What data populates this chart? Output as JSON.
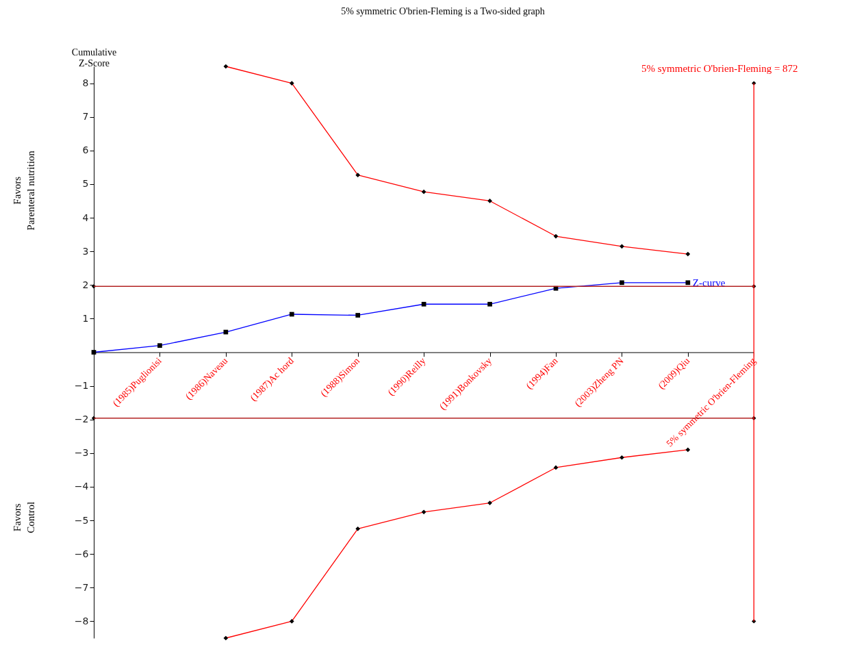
{
  "chart_data": {
    "type": "line",
    "title": "5% symmetric O'brien-Fleming is a Two-sided graph",
    "ylabel": "Cumulative Z-Score",
    "annotations": [
      "Favors Parenteral nutrition",
      "Favors Control"
    ],
    "categories": [
      null,
      "(1985)Puglionisi",
      "(1986)Naveau",
      "(1987)Ac hord",
      "(1988)Simon",
      "(1990)Reilly",
      "(1991)Bonkovsky",
      "(1994)Fan",
      "(2003)Zheng PN",
      "(2009)Qiu",
      "5% symmetric O'brien-Fleming"
    ],
    "series": [
      {
        "name": "Z-curve",
        "color": "#0000ff",
        "marker": "square",
        "values": [
          0,
          0.2,
          0.6,
          1.13,
          1.1,
          1.43,
          1.43,
          1.9,
          2.07,
          2.07,
          null
        ]
      },
      {
        "color": "#ff0000",
        "marker": "diamond",
        "values": [
          null,
          null,
          8.5,
          8.0,
          5.27,
          4.77,
          4.5,
          3.45,
          3.15,
          2.92,
          null
        ]
      },
      {
        "color": "#ff0000",
        "marker": "diamond",
        "values": [
          null,
          null,
          -8.5,
          -8.0,
          -5.25,
          -4.75,
          -4.48,
          -3.43,
          -3.13,
          -2.9,
          null
        ]
      },
      {
        "type": "scatter",
        "color": "#000000",
        "marker": "diamond",
        "values": [
          1.96,
          null,
          null,
          null,
          null,
          null,
          null,
          null,
          null,
          null,
          8
        ]
      },
      {
        "type": "scatter",
        "color": "#000000",
        "marker": "diamond",
        "values": [
          -1.96,
          null,
          null,
          null,
          null,
          null,
          null,
          null,
          null,
          null,
          -8
        ]
      },
      {
        "type": "scatter",
        "color": "#000000",
        "marker": "diamond",
        "values": [
          null,
          null,
          null,
          null,
          null,
          null,
          null,
          null,
          null,
          null,
          1.96
        ]
      },
      {
        "type": "scatter",
        "color": "#000000",
        "marker": "diamond",
        "values": [
          null,
          null,
          null,
          null,
          null,
          null,
          null,
          null,
          null,
          null,
          -1.96
        ]
      }
    ],
    "ylim": [
      -8.5,
      8.5
    ],
    "yticks": [
      -8,
      -7,
      -6,
      -5,
      -4,
      -3,
      -2,
      -1,
      1,
      2,
      3,
      4,
      5,
      6,
      7,
      8
    ],
    "ref_lines": [
      {
        "axis": "y",
        "value": 1.96,
        "color": "#b22222"
      },
      {
        "axis": "y",
        "value": -1.96,
        "color": "#b22222"
      },
      {
        "axis": "x",
        "value": "5% symmetric O'brien-Fleming",
        "label": "5% symmetric O'brien-Fleming = 872",
        "color": "#ff0000"
      }
    ],
    "grid": false
  }
}
